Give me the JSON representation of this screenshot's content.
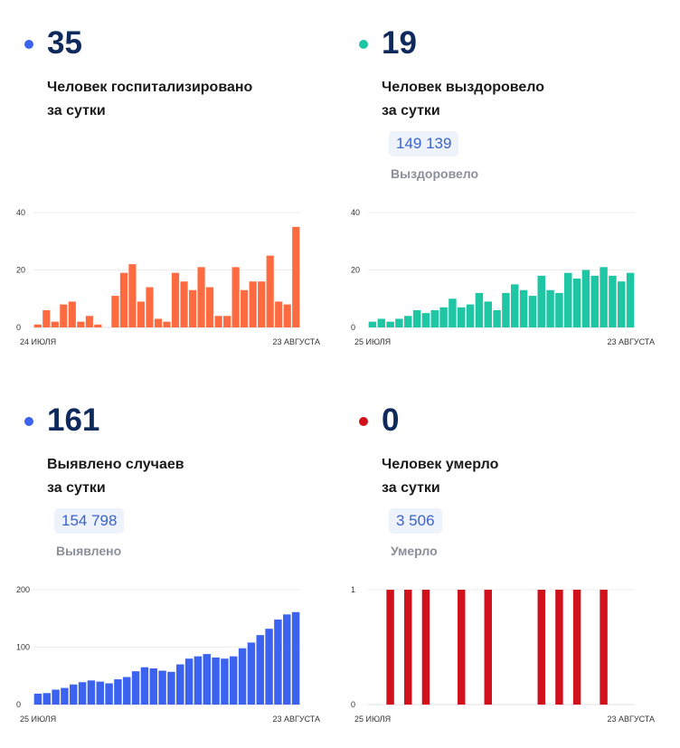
{
  "panels": [
    {
      "value": "35",
      "label_line1": "Человек госпитализировано",
      "label_line2": "за сутки",
      "dot_color": "#3b63f0",
      "bar_color": "#ff6b40"
    },
    {
      "value": "19",
      "label_line1": "Человек выздоровело",
      "label_line2": "за сутки",
      "total": "149 139",
      "total_label": "Выздоровело",
      "dot_color": "#1ec6a3",
      "bar_color": "#1ec6a3"
    },
    {
      "value": "161",
      "label_line1": "Выявлено случаев",
      "label_line2": "за сутки",
      "total": "154 798",
      "total_label": "Выявлено",
      "dot_color": "#3b63f0",
      "bar_color": "#3b63f0"
    },
    {
      "value": "0",
      "label_line1": "Человек умерло",
      "label_line2": "за сутки",
      "total": "3 506",
      "total_label": "Умерло",
      "dot_color": "#d0101b",
      "bar_color": "#d0101b"
    }
  ],
  "chart_data": [
    {
      "type": "bar",
      "start_label": "24 ИЮЛЯ",
      "end_label": "23 АВГУСТА",
      "ylim": [
        0,
        40
      ],
      "yticks": [
        0,
        20,
        40
      ],
      "values": [
        1,
        6,
        2,
        8,
        9,
        2,
        4,
        1,
        0,
        11,
        19,
        22,
        9,
        14,
        3,
        2,
        19,
        16,
        13,
        21,
        14,
        4,
        4,
        21,
        13,
        16,
        16,
        25,
        9,
        8,
        35
      ]
    },
    {
      "type": "bar",
      "start_label": "25 ИЮЛЯ",
      "end_label": "23 АВГУСТА",
      "ylim": [
        0,
        40
      ],
      "yticks": [
        0,
        20,
        40
      ],
      "values": [
        2,
        3,
        2,
        3,
        4,
        6,
        5,
        6,
        7,
        10,
        7,
        8,
        12,
        9,
        6,
        12,
        15,
        13,
        11,
        18,
        13,
        12,
        19,
        17,
        20,
        18,
        21,
        18,
        16,
        19
      ]
    },
    {
      "type": "bar",
      "start_label": "25 ИЮЛЯ",
      "end_label": "23 АВГУСТА",
      "ylim": [
        0,
        200
      ],
      "yticks": [
        0,
        100,
        200
      ],
      "values": [
        19,
        20,
        26,
        29,
        35,
        39,
        42,
        40,
        37,
        44,
        48,
        58,
        65,
        63,
        59,
        57,
        70,
        80,
        84,
        88,
        82,
        80,
        84,
        98,
        108,
        121,
        132,
        148,
        157,
        161
      ]
    },
    {
      "type": "bar",
      "start_label": "25 ИЮЛЯ",
      "end_label": "23 АВГУСТА",
      "ylim": [
        0,
        1
      ],
      "yticks": [
        0,
        1
      ],
      "values": [
        0,
        0,
        1,
        0,
        1,
        0,
        1,
        0,
        0,
        0,
        1,
        0,
        0,
        1,
        0,
        0,
        0,
        0,
        0,
        1,
        0,
        1,
        0,
        1,
        0,
        0,
        1,
        0,
        0,
        0
      ]
    }
  ]
}
